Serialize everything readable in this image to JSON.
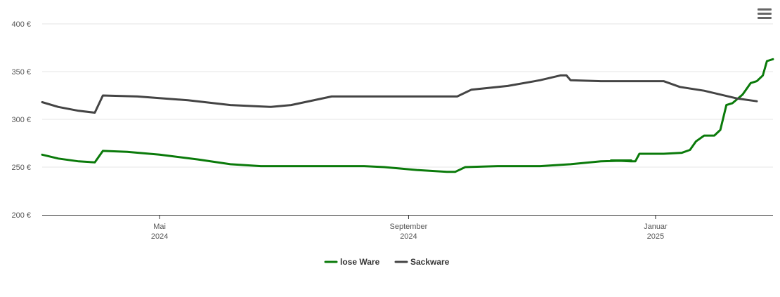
{
  "chart_data": {
    "type": "line",
    "title": "",
    "xlabel": "",
    "ylabel": "",
    "ylim": [
      200,
      400
    ],
    "y_ticks": [
      {
        "value": 200,
        "label": "200 €"
      },
      {
        "value": 250,
        "label": "250 €"
      },
      {
        "value": 300,
        "label": "300 €"
      },
      {
        "value": 350,
        "label": "350 €"
      },
      {
        "value": 400,
        "label": "400 €"
      }
    ],
    "xlim": [
      "2024-03-04",
      "2025-02-28"
    ],
    "x_ticks": [
      {
        "date": "2024-05-01",
        "label1": "Mai",
        "label2": "2024"
      },
      {
        "date": "2024-09-01",
        "label1": "September",
        "label2": "2024"
      },
      {
        "date": "2025-01-01",
        "label1": "Januar",
        "label2": "2025"
      }
    ],
    "grid": true,
    "legend_position": "bottom",
    "series": [
      {
        "name": "lose Ware",
        "color": "#0a7a0a",
        "points": [
          [
            "2024-03-04",
            263
          ],
          [
            "2024-03-12",
            259
          ],
          [
            "2024-03-22",
            256
          ],
          [
            "2024-03-30",
            255
          ],
          [
            "2024-04-03",
            267
          ],
          [
            "2024-04-15",
            266
          ],
          [
            "2024-05-01",
            263
          ],
          [
            "2024-05-20",
            258
          ],
          [
            "2024-06-05",
            253
          ],
          [
            "2024-06-20",
            251
          ],
          [
            "2024-07-15",
            251
          ],
          [
            "2024-08-10",
            251
          ],
          [
            "2024-08-20",
            250
          ],
          [
            "2024-09-05",
            247
          ],
          [
            "2024-09-20",
            245
          ],
          [
            "2024-09-24",
            245
          ],
          [
            "2024-09-29",
            250
          ],
          [
            "2024-10-15",
            251
          ],
          [
            "2024-11-05",
            251
          ],
          [
            "2024-11-20",
            253
          ],
          [
            "2024-12-05",
            256
          ],
          [
            "2024-12-20",
            257
          ],
          [
            "2024-12-10",
            257
          ],
          [
            "2024-12-20",
            256
          ],
          [
            "2024-12-22",
            256
          ],
          [
            "2024-12-24",
            264
          ],
          [
            "2025-01-05",
            264
          ],
          [
            "2025-01-14",
            265
          ],
          [
            "2025-01-18",
            268
          ],
          [
            "2025-01-21",
            277
          ],
          [
            "2025-01-25",
            283
          ],
          [
            "2025-01-30",
            283
          ],
          [
            "2025-02-02",
            289
          ],
          [
            "2025-02-05",
            315
          ],
          [
            "2025-02-08",
            317
          ],
          [
            "2025-02-13",
            326
          ],
          [
            "2025-02-17",
            338
          ],
          [
            "2025-02-20",
            340
          ],
          [
            "2025-02-23",
            346
          ],
          [
            "2025-02-25",
            361
          ],
          [
            "2025-02-28",
            363
          ]
        ]
      },
      {
        "name": "Sackware",
        "color": "#444444",
        "points": [
          [
            "2024-03-04",
            318
          ],
          [
            "2024-03-12",
            313
          ],
          [
            "2024-03-22",
            309
          ],
          [
            "2024-03-30",
            307
          ],
          [
            "2024-04-03",
            325
          ],
          [
            "2024-04-20",
            324
          ],
          [
            "2024-05-15",
            320
          ],
          [
            "2024-06-05",
            315
          ],
          [
            "2024-06-25",
            313
          ],
          [
            "2024-07-05",
            315
          ],
          [
            "2024-07-25",
            324
          ],
          [
            "2024-08-20",
            324
          ],
          [
            "2024-09-10",
            324
          ],
          [
            "2024-09-25",
            324
          ],
          [
            "2024-10-02",
            331
          ],
          [
            "2024-10-20",
            335
          ],
          [
            "2024-11-05",
            341
          ],
          [
            "2024-11-15",
            346
          ],
          [
            "2024-11-18",
            346
          ],
          [
            "2024-11-20",
            341
          ],
          [
            "2024-12-05",
            340
          ],
          [
            "2024-12-20",
            340
          ],
          [
            "2025-01-05",
            340
          ],
          [
            "2025-01-13",
            334
          ],
          [
            "2025-01-25",
            330
          ],
          [
            "2025-02-10",
            322
          ],
          [
            "2025-02-20",
            319
          ]
        ]
      }
    ]
  },
  "legend": {
    "items": [
      {
        "label": "lose Ware",
        "color": "#0a7a0a"
      },
      {
        "label": "Sackware",
        "color": "#444444"
      }
    ]
  },
  "menu": {
    "icon": "hamburger-menu-icon"
  }
}
